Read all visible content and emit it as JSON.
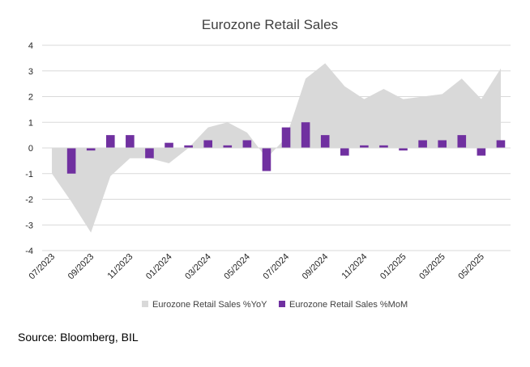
{
  "chart_data": {
    "type": "bar",
    "title": "Eurozone Retail Sales",
    "xlabel": "",
    "ylabel": "",
    "ylim": [
      -4,
      4
    ],
    "yticks": [
      -4,
      -3,
      -2,
      -1,
      0,
      1,
      2,
      3,
      4
    ],
    "grid": true,
    "legend_position": "bottom",
    "categories": [
      "07/2023",
      "08/2023",
      "09/2023",
      "10/2023",
      "11/2023",
      "12/2023",
      "01/2024",
      "02/2024",
      "03/2024",
      "04/2024",
      "05/2024",
      "06/2024",
      "07/2024",
      "08/2024",
      "09/2024",
      "10/2024",
      "11/2024",
      "12/2024",
      "01/2025",
      "02/2025",
      "03/2025",
      "04/2025",
      "05/2025",
      "06/2025"
    ],
    "tick_labels": [
      "07/2023",
      "09/2023",
      "11/2023",
      "01/2024",
      "03/2024",
      "05/2024",
      "07/2024",
      "09/2024",
      "11/2024",
      "01/2025",
      "03/2025",
      "05/2025"
    ],
    "series": [
      {
        "name": "Eurozone Retail Sales %YoY",
        "kind": "area",
        "color": "#d9d9d9",
        "values": [
          -1.0,
          -2.1,
          -3.3,
          -1.1,
          -0.4,
          -0.4,
          -0.6,
          0.0,
          0.8,
          1.0,
          0.6,
          -0.4,
          0.4,
          2.7,
          3.3,
          2.4,
          1.9,
          2.3,
          1.9,
          2.0,
          2.1,
          2.7,
          1.9,
          3.1
        ]
      },
      {
        "name": "Eurozone Retail Sales %MoM",
        "kind": "bar",
        "color": "#7030a0",
        "values": [
          null,
          -1.0,
          -0.1,
          0.5,
          0.5,
          -0.4,
          0.2,
          0.1,
          0.3,
          0.1,
          0.3,
          -0.9,
          0.8,
          1.0,
          0.5,
          -0.3,
          0.1,
          0.1,
          -0.1,
          0.3,
          0.3,
          0.5,
          -0.3,
          0.3
        ]
      }
    ]
  },
  "source": "Source: Bloomberg, BIL"
}
